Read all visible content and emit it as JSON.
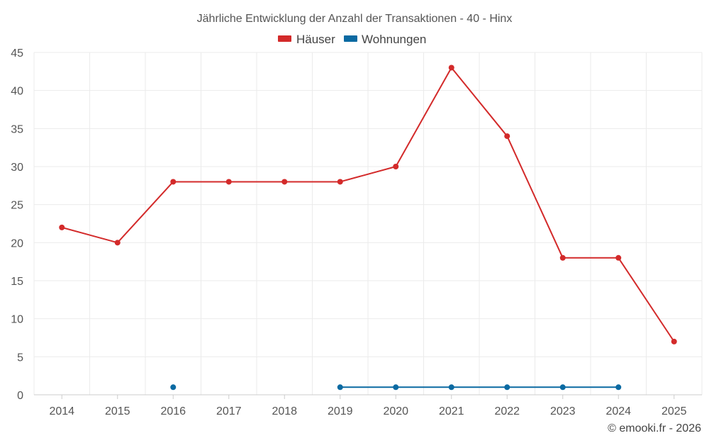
{
  "chart_data": {
    "type": "line",
    "title": "Jährliche Entwicklung der Anzahl der Transaktionen - 40 - Hinx",
    "categories": [
      "2014",
      "2015",
      "2016",
      "2017",
      "2018",
      "2019",
      "2020",
      "2021",
      "2022",
      "2023",
      "2024",
      "2025"
    ],
    "ylim": [
      0,
      45
    ],
    "yticks": [
      0,
      5,
      10,
      15,
      20,
      25,
      30,
      35,
      40,
      45
    ],
    "grid": true,
    "legend_position": "top-center",
    "series": [
      {
        "name": "Häuser",
        "color": "#d32a2a",
        "values": [
          22,
          20,
          28,
          28,
          28,
          28,
          30,
          43,
          34,
          18,
          18,
          7
        ]
      },
      {
        "name": "Wohnungen",
        "color": "#0b6aa2",
        "values": [
          null,
          null,
          1,
          null,
          null,
          1,
          1,
          1,
          1,
          1,
          1,
          null
        ]
      }
    ]
  },
  "credit": "© emooki.fr - 2026"
}
